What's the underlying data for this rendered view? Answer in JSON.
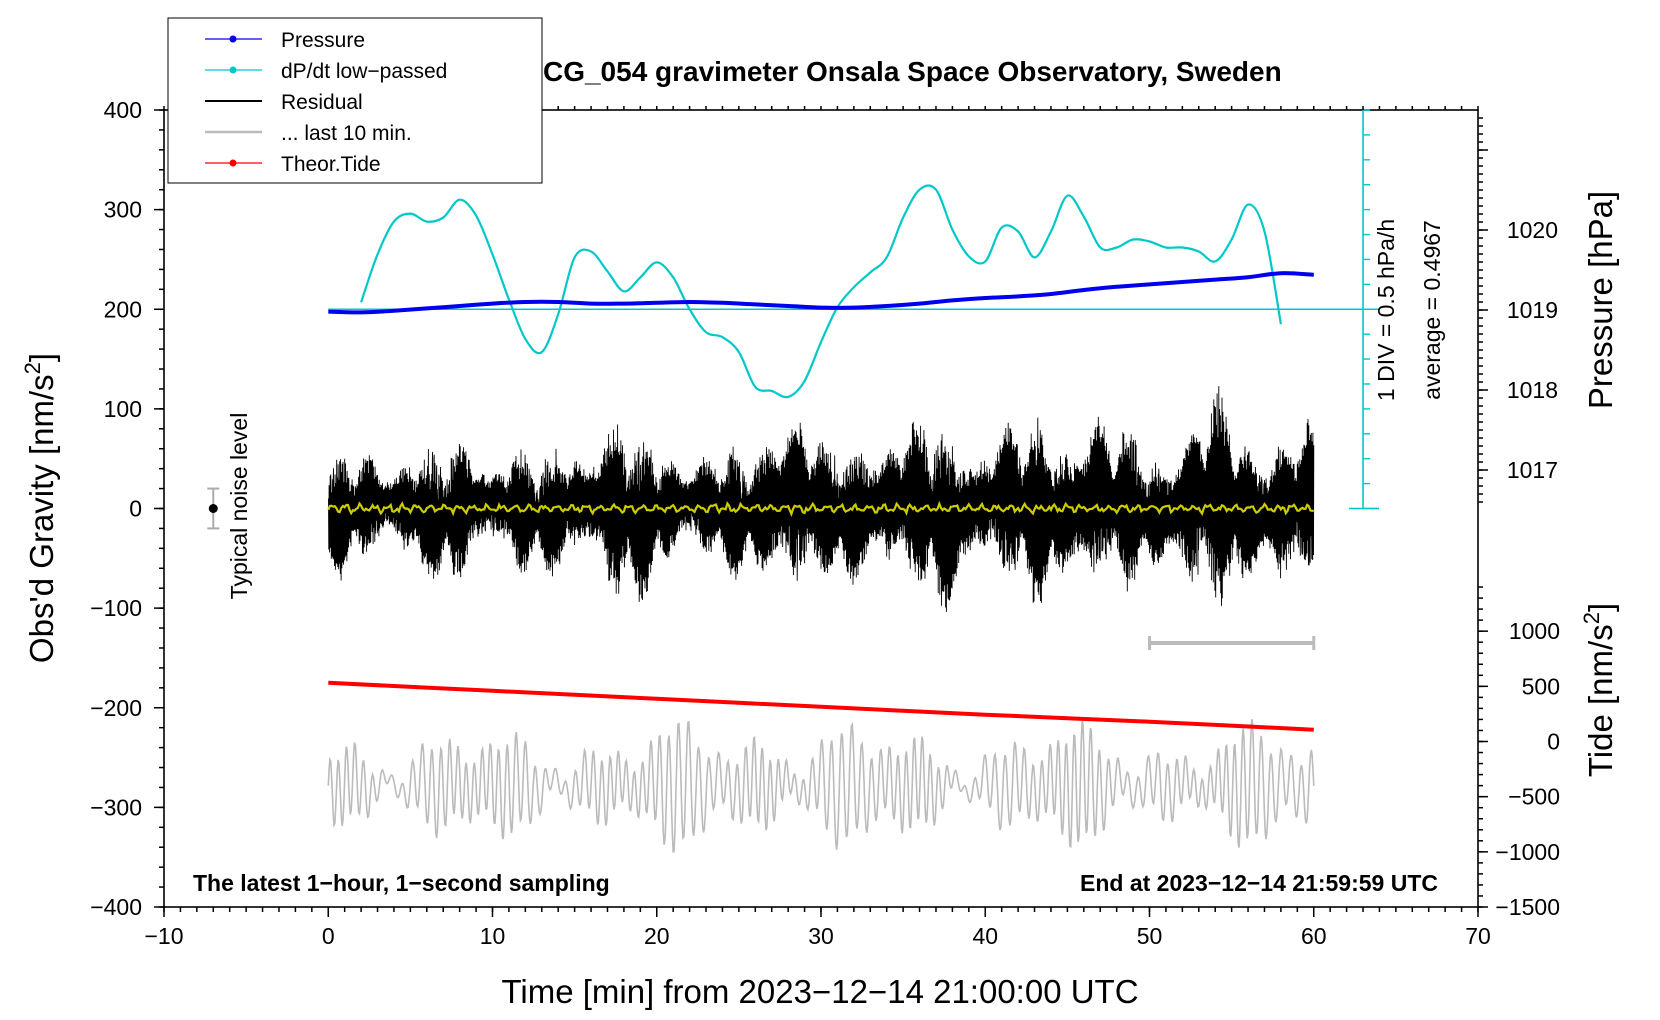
{
  "chart_data": {
    "type": "line",
    "title": "SCG_054 gravimeter Onsala Space Observatory, Sweden",
    "xlabel": "Time [min] from 2023−12−14 21:00:00 UTC",
    "ylabel_left": "Obs'd Gravity [nm/s",
    "ylabel_left_sup": "2",
    "ylabel_left_end": "]",
    "ylabel_right_top": "Pressure [hPa]",
    "ylabel_right_bottom": "Tide [nm/s",
    "ylabel_right_bottom_sup": "2",
    "ylabel_right_bottom_end": "]",
    "xlim": [
      -10,
      70
    ],
    "ylim": [
      -400,
      400
    ],
    "pressure_lim": [
      1016.5,
      1021.5
    ],
    "tide_lim": [
      -1500,
      1500
    ],
    "x_ticks": [
      "−10",
      "0",
      "10",
      "20",
      "30",
      "40",
      "50",
      "60",
      "70"
    ],
    "y_ticks": [
      "400",
      "300",
      "200",
      "100",
      "0",
      "−100",
      "−200",
      "−300",
      "−400"
    ],
    "pressure_ticks": [
      "1020",
      "1019",
      "1018",
      "1017"
    ],
    "tide_ticks": [
      "1000",
      "500",
      "0",
      "−500",
      "−1000",
      "−1500"
    ],
    "legend": [
      {
        "label": "Pressure",
        "color": "#0000ee"
      },
      {
        "label": "dP/dt low−passed",
        "color": "#00c8c8"
      },
      {
        "label": "Residual",
        "color": "#000000"
      },
      {
        "label": "... last 10 min.",
        "color": "#bbbbbb"
      },
      {
        "label": "Theor.Tide",
        "color": "#ff0000"
      }
    ],
    "annotations": {
      "noise_label": "Typical noise level",
      "scale_div": "1 DIV = 0.5 hPa/h",
      "scale_avg": "average = 0.4967",
      "bottom_left": "The latest 1−hour, 1−second sampling",
      "bottom_right": "End at 2023−12−14 21:59:59 UTC"
    },
    "series": [
      {
        "name": "Pressure",
        "unit": "hPa",
        "color": "#0000ee",
        "points": [
          [
            0,
            1018.98
          ],
          [
            2,
            1018.97
          ],
          [
            4,
            1018.99
          ],
          [
            6,
            1019.02
          ],
          [
            8,
            1019.05
          ],
          [
            10,
            1019.08
          ],
          [
            12,
            1019.1
          ],
          [
            14,
            1019.1
          ],
          [
            16,
            1019.08
          ],
          [
            18,
            1019.08
          ],
          [
            20,
            1019.09
          ],
          [
            22,
            1019.1
          ],
          [
            24,
            1019.09
          ],
          [
            26,
            1019.07
          ],
          [
            28,
            1019.05
          ],
          [
            30,
            1019.03
          ],
          [
            32,
            1019.03
          ],
          [
            34,
            1019.05
          ],
          [
            36,
            1019.08
          ],
          [
            38,
            1019.12
          ],
          [
            40,
            1019.15
          ],
          [
            42,
            1019.17
          ],
          [
            44,
            1019.2
          ],
          [
            46,
            1019.25
          ],
          [
            48,
            1019.29
          ],
          [
            50,
            1019.32
          ],
          [
            52,
            1019.35
          ],
          [
            54,
            1019.38
          ],
          [
            56,
            1019.41
          ],
          [
            58,
            1019.46
          ],
          [
            60,
            1019.44
          ]
        ]
      },
      {
        "name": "dP/dt low-passed",
        "unit": "nm/s2 plot units",
        "color": "#00c8c8",
        "baseline": 200,
        "points": [
          [
            2,
            207
          ],
          [
            3,
            255
          ],
          [
            4,
            288
          ],
          [
            5,
            296
          ],
          [
            6,
            288
          ],
          [
            7,
            292
          ],
          [
            8,
            310
          ],
          [
            9,
            294
          ],
          [
            10,
            255
          ],
          [
            11,
            210
          ],
          [
            12,
            170
          ],
          [
            13,
            157
          ],
          [
            14,
            195
          ],
          [
            15,
            252
          ],
          [
            16,
            258
          ],
          [
            17,
            238
          ],
          [
            18,
            218
          ],
          [
            19,
            232
          ],
          [
            20,
            247
          ],
          [
            21,
            232
          ],
          [
            22,
            200
          ],
          [
            23,
            177
          ],
          [
            24,
            172
          ],
          [
            25,
            157
          ],
          [
            26,
            122
          ],
          [
            27,
            118
          ],
          [
            28,
            112
          ],
          [
            29,
            128
          ],
          [
            30,
            167
          ],
          [
            31,
            202
          ],
          [
            32,
            222
          ],
          [
            33,
            237
          ],
          [
            34,
            252
          ],
          [
            35,
            292
          ],
          [
            36,
            320
          ],
          [
            37,
            320
          ],
          [
            38,
            280
          ],
          [
            39,
            253
          ],
          [
            40,
            248
          ],
          [
            41,
            282
          ],
          [
            42,
            278
          ],
          [
            43,
            252
          ],
          [
            44,
            278
          ],
          [
            45,
            314
          ],
          [
            46,
            293
          ],
          [
            47,
            262
          ],
          [
            48,
            262
          ],
          [
            49,
            270
          ],
          [
            50,
            268
          ],
          [
            51,
            262
          ],
          [
            52,
            262
          ],
          [
            53,
            258
          ],
          [
            54,
            248
          ],
          [
            55,
            270
          ],
          [
            56,
            305
          ],
          [
            57,
            278
          ],
          [
            58,
            185
          ]
        ]
      },
      {
        "name": "Residual",
        "unit": "nm/s2",
        "color": "#000000",
        "envelope": [
          [
            0,
            75
          ],
          [
            3,
            70
          ],
          [
            6,
            80
          ],
          [
            8,
            90
          ],
          [
            10,
            80
          ],
          [
            13,
            70
          ],
          [
            16,
            105
          ],
          [
            18,
            110
          ],
          [
            20,
            90
          ],
          [
            23,
            70
          ],
          [
            26,
            80
          ],
          [
            28,
            165
          ],
          [
            30,
            75
          ],
          [
            32,
            100
          ],
          [
            34,
            110
          ],
          [
            36,
            100
          ],
          [
            38,
            130
          ],
          [
            40,
            100
          ],
          [
            42,
            100
          ],
          [
            44,
            120
          ],
          [
            46,
            135
          ],
          [
            48,
            90
          ],
          [
            50,
            90
          ],
          [
            52,
            110
          ],
          [
            54,
            130
          ],
          [
            56,
            100
          ],
          [
            58,
            120
          ],
          [
            60,
            90
          ]
        ]
      },
      {
        "name": "... last 10 min.",
        "unit": "nm/s2",
        "color": "#cccc00",
        "points": [
          [
            0,
            0
          ],
          [
            60,
            0
          ]
        ]
      },
      {
        "name": "Theor.Tide",
        "unit": "nm/s2",
        "color": "#ff0000",
        "points": [
          [
            0,
            -175
          ],
          [
            10,
            -183
          ],
          [
            20,
            -191
          ],
          [
            30,
            -199
          ],
          [
            40,
            -207
          ],
          [
            50,
            -214
          ],
          [
            60,
            -222
          ]
        ]
      },
      {
        "name": "Tide (gray)",
        "unit": "nm/s2 tide axis",
        "color": "#bbbbbb",
        "envelope": [
          [
            0,
            480
          ],
          [
            5,
            520
          ],
          [
            10,
            470
          ],
          [
            15,
            520
          ],
          [
            20,
            560
          ],
          [
            25,
            600
          ],
          [
            28,
            720
          ],
          [
            30,
            600
          ],
          [
            35,
            500
          ],
          [
            40,
            500
          ],
          [
            45,
            560
          ],
          [
            50,
            500
          ],
          [
            55,
            560
          ],
          [
            60,
            500
          ]
        ]
      }
    ],
    "noise_bar": {
      "x": -7,
      "center": 0,
      "halfwidth": 20
    },
    "scale_bar_range": [
      50,
      60
    ],
    "scale_bar_y": -135
  }
}
